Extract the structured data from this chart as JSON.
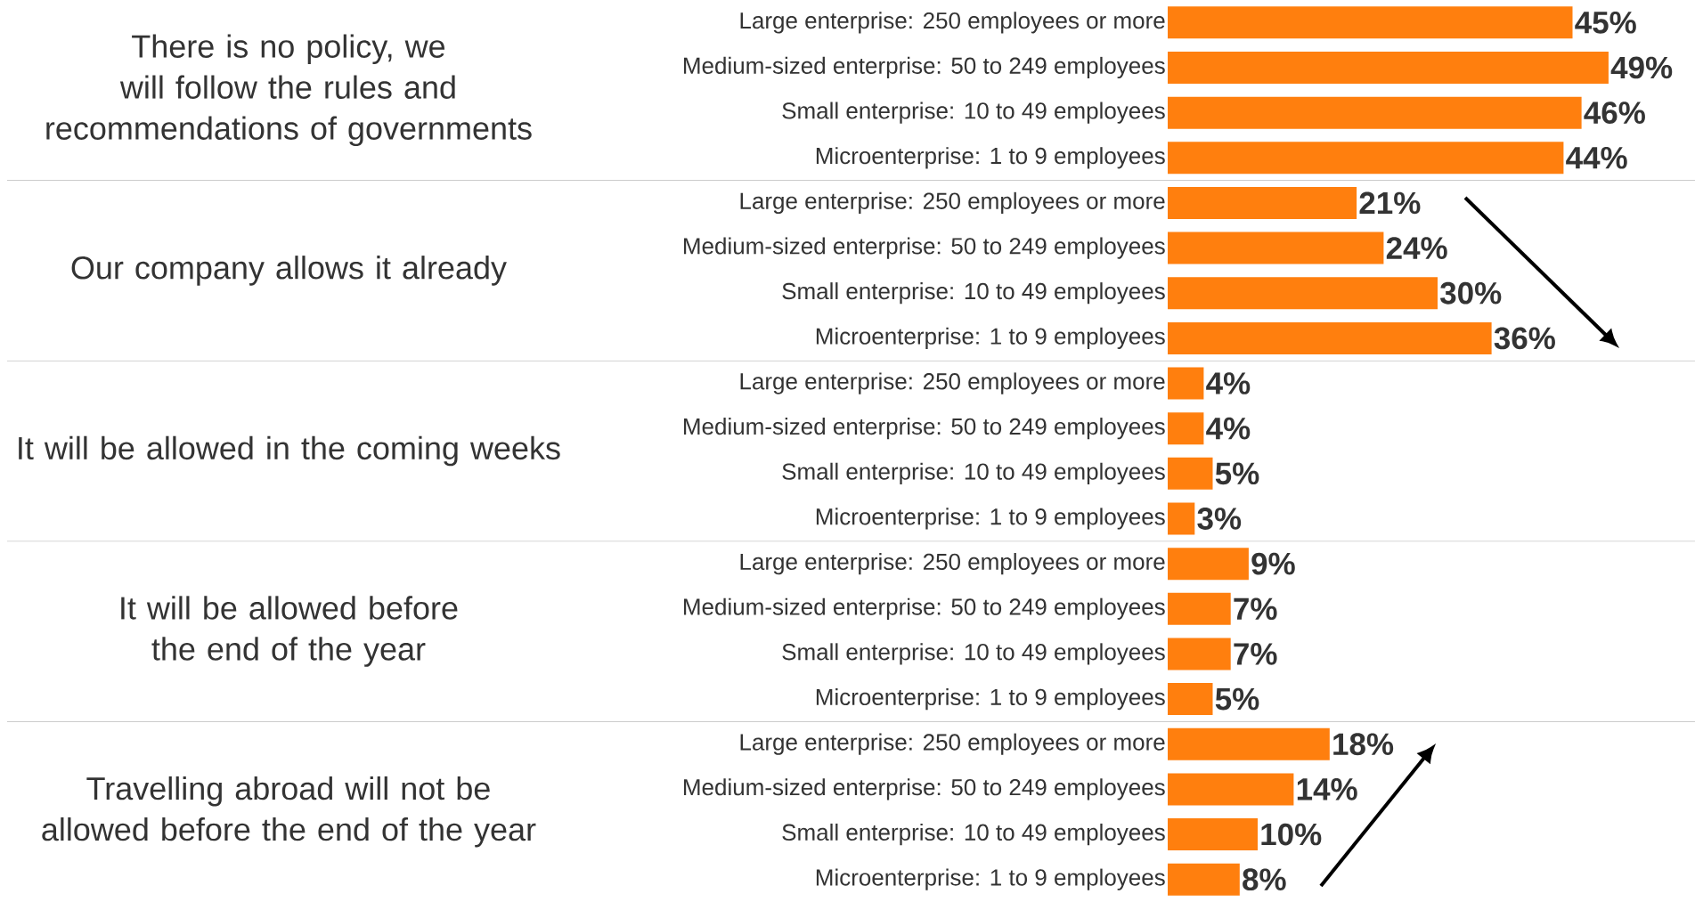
{
  "chart_data": {
    "type": "bar",
    "orientation": "horizontal",
    "color": "#ff7f0e",
    "categories": [
      "Large enterprise: 250 employees or more",
      "Medium-sized enterprise: 50 to 249 employees",
      "Small enterprise: 10 to 49 employees",
      "Microenterprise: 1 to 9 employees",
      "Large enterprise: 250 employees or more",
      "Medium-sized enterprise: 50 to 249 employees",
      "Small enterprise: 10 to 49 employees",
      "Microenterprise: 1 to 9 employees",
      "Large enterprise: 250 employees or more",
      "Medium-sized enterprise: 50 to 249 employees",
      "Small enterprise: 10 to 49 employees",
      "Microenterprise: 1 to 9 employees",
      "Large enterprise: 250 employees or more",
      "Medium-sized enterprise: 50 to 249 employees",
      "Small enterprise: 10 to 49 employees",
      "Microenterprise: 1 to 9 employees",
      "Large enterprise: 250 employees or more",
      "Medium-sized enterprise: 50 to 249 employees",
      "Small enterprise: 10 to 49 employees",
      "Microenterprise: 1 to 9 employees"
    ],
    "values": [
      45,
      49,
      46,
      44,
      21,
      24,
      30,
      36,
      4,
      4,
      5,
      3,
      9,
      7,
      7,
      5,
      18,
      14,
      10,
      8
    ],
    "value_labels": [
      "45%",
      "49%",
      "46%",
      "44%",
      "21%",
      "24%",
      "30%",
      "36%",
      "4%",
      "4%",
      "5%",
      "3%",
      "9%",
      "7%",
      "7%",
      "5%",
      "18%",
      "14%",
      "10%",
      "8%"
    ],
    "annotations": [
      "There is no policy, we will follow the rules and recommendations of governments",
      "Our company allows it already",
      "It will be allowed in the coming weeks",
      "It will be allowed before the end of the year",
      "Travelling abroad will not be allowed before the end of the year"
    ]
  }
}
